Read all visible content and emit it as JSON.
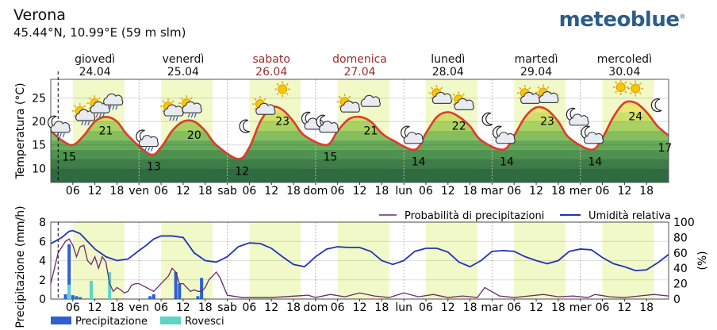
{
  "location": {
    "name": "Verona",
    "coords": "45.44°N, 10.99°E (59 m slm)"
  },
  "brand": {
    "name": "meteoblue",
    "mark": "®"
  },
  "days": [
    {
      "name": "giovedì",
      "date": "24.04",
      "color": "#111111"
    },
    {
      "name": "venerdì",
      "date": "25.04",
      "color": "#111111"
    },
    {
      "name": "sabato",
      "date": "26.04",
      "color": "#9e2a2a"
    },
    {
      "name": "domenica",
      "date": "27.04",
      "color": "#9e2a2a"
    },
    {
      "name": "lunedì",
      "date": "28.04",
      "color": "#111111"
    },
    {
      "name": "martedì",
      "date": "29.04",
      "color": "#111111"
    },
    {
      "name": "mercoledì",
      "date": "30.04",
      "color": "#111111"
    }
  ],
  "x_ticks": [
    "06",
    "12",
    "18",
    "ven",
    "06",
    "12",
    "18",
    "sab",
    "06",
    "12",
    "18",
    "dom",
    "06",
    "12",
    "18",
    "lun",
    "06",
    "12",
    "18",
    "mar",
    "06",
    "12",
    "18",
    "mer",
    "06",
    "12",
    "18"
  ],
  "chart_data": [
    {
      "type": "line",
      "ylabel": "Temperatura (°C)",
      "ylim": [
        7,
        29
      ],
      "yticks": [
        10,
        15,
        20,
        25
      ],
      "x_unit": "hours from 24.04 00:00",
      "xlim": [
        0,
        168
      ],
      "series": [
        {
          "values_x": [
            0,
            3,
            6,
            9,
            12,
            15,
            18,
            21,
            27,
            30,
            33,
            36,
            39,
            42,
            45,
            51,
            54,
            57,
            60,
            63,
            66,
            69,
            75,
            78,
            81,
            84,
            87,
            90,
            93,
            99,
            102,
            105,
            108,
            111,
            114,
            117,
            123,
            126,
            129,
            132,
            135,
            138,
            141,
            147,
            150,
            153,
            156,
            159,
            162,
            165,
            168
          ],
          "values_y": [
            18,
            16,
            15,
            17,
            20,
            21,
            20,
            17,
            13,
            14.5,
            18,
            20,
            20,
            18,
            15,
            12,
            14.5,
            20,
            23,
            22.5,
            20,
            17,
            15,
            18,
            20.5,
            21,
            20,
            17.5,
            16,
            14,
            17.5,
            21,
            22,
            21,
            19,
            16,
            14,
            17,
            21,
            23,
            22.5,
            20,
            16.5,
            14,
            16.5,
            21,
            24,
            24,
            22,
            19,
            17
          ]
        }
      ],
      "labels": {
        "max": [
          {
            "x": 15,
            "v": "21"
          },
          {
            "x": 39,
            "v": "20"
          },
          {
            "x": 63,
            "v": "23"
          },
          {
            "x": 87,
            "v": "21"
          },
          {
            "x": 111,
            "v": "22"
          },
          {
            "x": 135,
            "v": "23"
          },
          {
            "x": 159,
            "v": "24"
          }
        ],
        "min": [
          {
            "x": 5,
            "v": "15"
          },
          {
            "x": 28,
            "v": "13"
          },
          {
            "x": 52,
            "v": "12"
          },
          {
            "x": 76,
            "v": "15"
          },
          {
            "x": 100,
            "v": "14"
          },
          {
            "x": 124,
            "v": "14"
          },
          {
            "x": 148,
            "v": "14"
          },
          {
            "x": 167,
            "v": "17"
          }
        ]
      }
    },
    {
      "type": "bar",
      "ylabel": "Precipitazione (mm/h)",
      "ylim": [
        0,
        8
      ],
      "yticks": [
        0,
        2,
        4,
        6,
        8
      ],
      "y2label": "(%)",
      "y2lim": [
        0,
        100
      ],
      "y2ticks": [
        0,
        20,
        40,
        60,
        80,
        100
      ],
      "legend_top": [
        "Probabilità di precipitazioni",
        "Umidità relativa"
      ],
      "legend_bottom": [
        "Precipitazione",
        "Rovesci"
      ],
      "series": [
        {
          "name": "Precipitazione",
          "color": "#2f5fd0",
          "x": [
            4,
            5,
            6,
            7,
            8,
            27,
            28,
            34,
            35,
            40,
            41
          ],
          "values": [
            0.5,
            5.7,
            0.4,
            0.3,
            0.2,
            0.3,
            0.5,
            2.8,
            1.6,
            0.3,
            2.2
          ]
        },
        {
          "name": "Rovesci",
          "color": "#5fd3c4",
          "x": [
            5,
            11,
            16
          ],
          "values": [
            1.5,
            1.9,
            2.8
          ]
        },
        {
          "name": "Probabilità di precipitazioni",
          "color": "#6b2a6b",
          "x": [
            0,
            2,
            4,
            5,
            6,
            7,
            8,
            9,
            10,
            11,
            12,
            13,
            14,
            15,
            16,
            17,
            18,
            19,
            20,
            21,
            22,
            23,
            24,
            26,
            28,
            30,
            32,
            33,
            34,
            35,
            36,
            37,
            38,
            39,
            40,
            41,
            42,
            43,
            44,
            45,
            46,
            48,
            52,
            60,
            70,
            72,
            76,
            80,
            84,
            88,
            92,
            96,
            100,
            104,
            108,
            112,
            116,
            118,
            122,
            126,
            130,
            134,
            138,
            142,
            146,
            148,
            152,
            156,
            160,
            164,
            168
          ],
          "values": [
            20,
            60,
            75,
            78,
            70,
            55,
            68,
            70,
            50,
            45,
            55,
            40,
            55,
            48,
            20,
            10,
            15,
            12,
            8,
            10,
            18,
            20,
            20,
            15,
            10,
            20,
            30,
            40,
            35,
            20,
            20,
            15,
            10,
            12,
            10,
            10,
            15,
            25,
            30,
            35,
            28,
            5,
            2,
            2,
            5,
            2,
            6,
            3,
            8,
            4,
            2,
            8,
            3,
            6,
            2,
            4,
            2,
            15,
            4,
            2,
            4,
            6,
            3,
            4,
            2,
            6,
            3,
            2,
            4,
            6,
            4
          ]
        },
        {
          "name": "Umidità relativa",
          "color": "#2233bb",
          "x": [
            0,
            3,
            5,
            6,
            8,
            10,
            12,
            15,
            18,
            21,
            24,
            26,
            28,
            30,
            33,
            36,
            39,
            42,
            45,
            48,
            51,
            54,
            57,
            60,
            63,
            66,
            69,
            72,
            75,
            78,
            81,
            84,
            87,
            90,
            93,
            96,
            99,
            102,
            105,
            108,
            111,
            114,
            117,
            120,
            123,
            126,
            129,
            132,
            135,
            138,
            141,
            144,
            147,
            150,
            153,
            156,
            159,
            162,
            165,
            168
          ],
          "values": [
            72,
            80,
            88,
            89,
            85,
            75,
            65,
            55,
            50,
            52,
            63,
            70,
            78,
            82,
            82,
            80,
            60,
            50,
            48,
            55,
            68,
            73,
            72,
            66,
            55,
            45,
            42,
            55,
            65,
            68,
            67,
            67,
            62,
            50,
            45,
            50,
            62,
            66,
            66,
            61,
            48,
            42,
            50,
            62,
            63,
            62,
            55,
            50,
            46,
            50,
            62,
            65,
            64,
            54,
            46,
            42,
            37,
            38,
            47,
            58
          ]
        }
      ]
    }
  ],
  "weather_icons": [
    {
      "x": 2,
      "panel": "top",
      "icon": "moon-cloud-rain-icon"
    },
    {
      "x": 9,
      "panel": "top",
      "icon": "sun-cloud-rain-icon"
    },
    {
      "x": 13,
      "panel": "top",
      "icon": "sun-cloud-rain-icon"
    },
    {
      "x": 17,
      "panel": "top",
      "icon": "cloud-rain-icon"
    },
    {
      "x": 26,
      "panel": "top",
      "icon": "moon-cloud-rain-icon"
    },
    {
      "x": 33,
      "panel": "top",
      "icon": "sun-cloud-rain-icon"
    },
    {
      "x": 38,
      "panel": "top",
      "icon": "sun-cloud-rain-icon"
    },
    {
      "x": 53,
      "panel": "top",
      "icon": "moon-icon"
    },
    {
      "x": 58,
      "panel": "top",
      "icon": "sun-cloud-icon"
    },
    {
      "x": 63,
      "panel": "top",
      "icon": "sun-icon"
    },
    {
      "x": 71,
      "panel": "top",
      "icon": "moon-cloud-icon"
    },
    {
      "x": 75,
      "panel": "top",
      "icon": "moon-cloud-icon"
    },
    {
      "x": 81,
      "panel": "top",
      "icon": "sun-cloud-icon"
    },
    {
      "x": 87,
      "panel": "top",
      "icon": "cloud-icon"
    },
    {
      "x": 98,
      "panel": "top",
      "icon": "moon-cloud-icon"
    },
    {
      "x": 106,
      "panel": "top",
      "icon": "sun-cloud-icon"
    },
    {
      "x": 112,
      "panel": "top",
      "icon": "sun-cloud-icon"
    },
    {
      "x": 119,
      "panel": "top",
      "icon": "moon-icon"
    },
    {
      "x": 123,
      "panel": "top",
      "icon": "moon-cloud-icon"
    },
    {
      "x": 130,
      "panel": "top",
      "icon": "sun-cloud-icon"
    },
    {
      "x": 135,
      "panel": "top",
      "icon": "sun-cloud-icon"
    },
    {
      "x": 143,
      "panel": "top",
      "icon": "moon-cloud-icon"
    },
    {
      "x": 147,
      "panel": "top",
      "icon": "moon-cloud-icon"
    },
    {
      "x": 155,
      "panel": "top",
      "icon": "sun-icon"
    },
    {
      "x": 159,
      "panel": "top",
      "icon": "sun-icon"
    },
    {
      "x": 165,
      "panel": "top",
      "icon": "moon-icon"
    }
  ],
  "now_hour": 2
}
